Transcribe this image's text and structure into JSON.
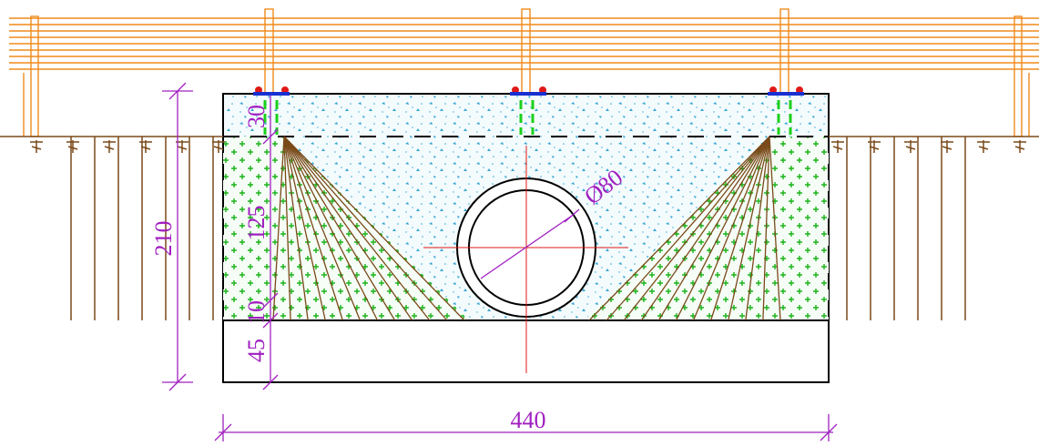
{
  "dimensions": {
    "cover": "30",
    "fill_height": "125",
    "bedding": "10",
    "base": "45",
    "total_height": "210",
    "width": "440",
    "pipe_diameter": "Ø80"
  }
}
